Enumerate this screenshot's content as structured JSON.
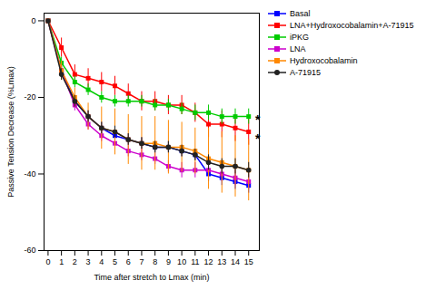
{
  "chart_data": {
    "type": "line",
    "xlabel": "Time after stretch to Lmax (min)",
    "ylabel": "Passive Tension Decrease (%Lmax)",
    "x": [
      0,
      1,
      2,
      3,
      4,
      5,
      6,
      7,
      8,
      9,
      10,
      11,
      12,
      13,
      14,
      15
    ],
    "series": [
      {
        "name": "Basal",
        "color": "#0000FF",
        "marker": "square",
        "values": [
          0,
          -13,
          -21,
          -25,
          -28,
          -30,
          -31,
          -32,
          -33,
          -33,
          -34,
          -35,
          -40,
          -41,
          -42,
          -43
        ],
        "errors": [
          0,
          1.5,
          1.5,
          1.5,
          1.5,
          1.5,
          1.5,
          1.5,
          1.5,
          1.5,
          1.5,
          1.5,
          2,
          2,
          2,
          2
        ]
      },
      {
        "name": "LNA+Hydroxocobalamin+A-71915",
        "color": "#FF0000",
        "marker": "square",
        "values": [
          0,
          -7,
          -14,
          -15,
          -16,
          -17,
          -19,
          -21,
          -21,
          -22,
          -22,
          -24,
          -27,
          -27,
          -28,
          -29
        ],
        "errors": [
          0,
          2.5,
          2.5,
          2.5,
          2.5,
          2.5,
          2.5,
          2.5,
          2.5,
          2.5,
          2.5,
          2.5,
          3.5,
          3.5,
          3.5,
          3.5
        ]
      },
      {
        "name": "iPKG",
        "color": "#00CC00",
        "marker": "square",
        "values": [
          0,
          -11,
          -16,
          -18,
          -20,
          -21,
          -21,
          -21,
          -22,
          -22,
          -23,
          -24,
          -24,
          -25,
          -25,
          -25
        ],
        "errors": [
          0,
          1.5,
          1.5,
          1.5,
          1.5,
          1.5,
          1.5,
          1.5,
          1.5,
          1.5,
          1.5,
          2,
          2,
          2,
          2,
          2
        ]
      },
      {
        "name": "LNA",
        "color": "#CC00CC",
        "marker": "square",
        "values": [
          0,
          -13,
          -22,
          -27,
          -30,
          -32,
          -34,
          -35,
          -36,
          -38,
          -39,
          -39,
          -39,
          -40,
          -41,
          -42
        ],
        "errors": [
          0,
          1.5,
          1.5,
          1.5,
          1.5,
          1.5,
          1.5,
          1.5,
          1.5,
          1.5,
          2,
          2,
          2,
          2,
          2,
          2
        ]
      },
      {
        "name": "Hydroxocobalamin",
        "color": "#FF8800",
        "marker": "square",
        "values": [
          0,
          -13,
          -20,
          -25,
          -28,
          -29,
          -31,
          -32,
          -32,
          -33,
          -33,
          -34,
          -36,
          -37,
          -38,
          -39
        ],
        "errors": [
          0,
          2.5,
          2.5,
          3.5,
          5.5,
          6.0,
          6.5,
          7.0,
          7.0,
          7.0,
          6.5,
          6.0,
          8.0,
          8.0,
          8.0,
          8.0
        ]
      },
      {
        "name": "A-71915",
        "color": "#222222",
        "marker": "circle",
        "values": [
          0,
          -14,
          -21,
          -25,
          -28,
          -29,
          -31,
          -32,
          -33,
          -33,
          -34,
          -35,
          -37,
          -38,
          -38,
          -39
        ],
        "errors": [
          0,
          1.5,
          1.5,
          1.5,
          1.5,
          1.5,
          1.5,
          1.5,
          1.5,
          1.5,
          1.5,
          1.5,
          2,
          2,
          2,
          2
        ]
      }
    ],
    "xlim": [
      -0.3,
      15.8
    ],
    "xticks": [
      0,
      1,
      2,
      3,
      4,
      5,
      6,
      7,
      8,
      9,
      10,
      11,
      12,
      13,
      14,
      15
    ],
    "ylim": [
      -60,
      2
    ],
    "yticks": [
      0,
      -20,
      -40,
      -60
    ],
    "legend": "upper right",
    "grid": false,
    "annotations": [
      {
        "text": "*",
        "x": 15.5,
        "y": -25
      },
      {
        "text": "*",
        "x": 15.5,
        "y": -30
      }
    ]
  }
}
